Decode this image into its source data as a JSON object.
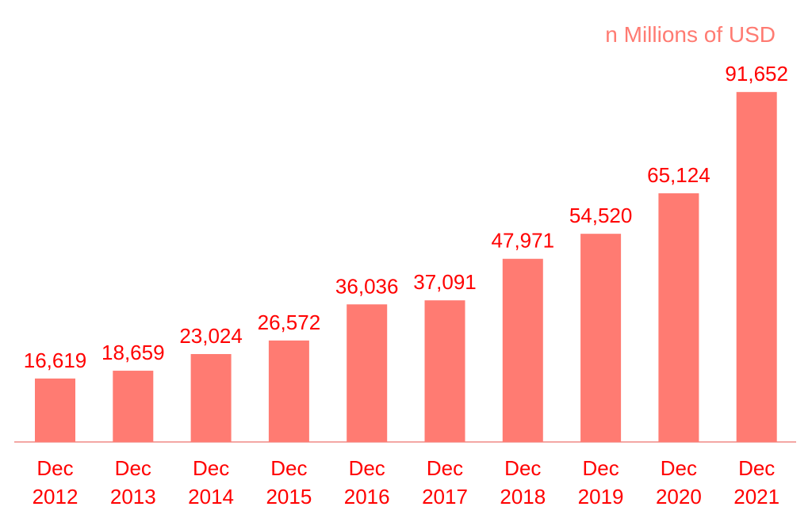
{
  "chart_data": {
    "type": "bar",
    "unit_label": "n Millions of USD",
    "categories": [
      [
        "Dec",
        "2012"
      ],
      [
        "Dec",
        "2013"
      ],
      [
        "Dec",
        "2014"
      ],
      [
        "Dec",
        "2015"
      ],
      [
        "Dec",
        "2016"
      ],
      [
        "Dec",
        "2017"
      ],
      [
        "Dec",
        "2018"
      ],
      [
        "Dec",
        "2019"
      ],
      [
        "Dec",
        "2020"
      ],
      [
        "Dec",
        "2021"
      ]
    ],
    "values": [
      16619,
      18659,
      23024,
      26572,
      36036,
      37091,
      47971,
      54520,
      65124,
      91652
    ],
    "value_labels": [
      "16,619",
      "18,659",
      "23,024",
      "26,572",
      "36,036",
      "37,091",
      "47,971",
      "54,520",
      "65,124",
      "91,652"
    ],
    "ylim": [
      0,
      92000
    ],
    "grid": false,
    "colors": {
      "bar": "#ff7b72",
      "axis": "#f08a85",
      "label_text": "#ff0000",
      "unit_text": "#ff7b72"
    }
  }
}
